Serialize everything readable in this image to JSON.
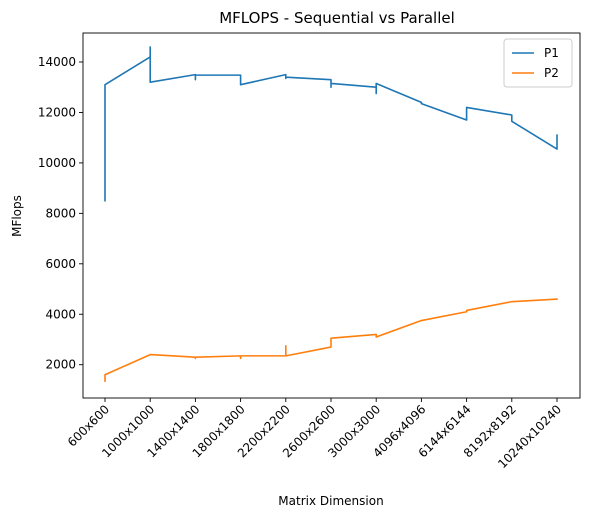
{
  "chart_data": {
    "type": "line",
    "title": "MFLOPS - Sequential vs Parallel",
    "xlabel": "Matrix Dimension",
    "ylabel": "MFlops",
    "categories": [
      "600x600",
      "1000x1000",
      "1400x1400",
      "1800x1800",
      "2200x2200",
      "2600x2600",
      "3000x3000",
      "4096x4096",
      "6144x6144",
      "8192x8192",
      "10240x10240"
    ],
    "ylim": [
      680,
      15150
    ],
    "yticks": [
      2000,
      4000,
      6000,
      8000,
      10000,
      12000,
      14000
    ],
    "grid": false,
    "legend_position": "top-right",
    "series": [
      {
        "name": "P1",
        "color": "#1f77b4",
        "points": [
          [
            0,
            8500
          ],
          [
            0,
            13100
          ],
          [
            1,
            14200
          ],
          [
            1,
            14600
          ],
          [
            1,
            13200
          ],
          [
            2,
            13500
          ],
          [
            2,
            13300
          ],
          [
            2,
            13480
          ],
          [
            3,
            13480
          ],
          [
            3,
            13100
          ],
          [
            4,
            13500
          ],
          [
            4,
            13350
          ],
          [
            4,
            13400
          ],
          [
            5,
            13300
          ],
          [
            5,
            13000
          ],
          [
            5,
            13150
          ],
          [
            6,
            13000
          ],
          [
            6,
            12750
          ],
          [
            6,
            13150
          ],
          [
            7,
            12400
          ],
          [
            7,
            12350
          ],
          [
            8,
            11700
          ],
          [
            8,
            12200
          ],
          [
            9,
            11900
          ],
          [
            9,
            11650
          ],
          [
            10,
            10550
          ],
          [
            10,
            11100
          ]
        ]
      },
      {
        "name": "P2",
        "color": "#ff7f0e",
        "points": [
          [
            0,
            1350
          ],
          [
            0,
            1600
          ],
          [
            1,
            2400
          ],
          [
            2,
            2300
          ],
          [
            2,
            2250
          ],
          [
            2,
            2300
          ],
          [
            3,
            2350
          ],
          [
            3,
            2250
          ],
          [
            3,
            2350
          ],
          [
            4,
            2350
          ],
          [
            4,
            2750
          ],
          [
            4,
            2350
          ],
          [
            5,
            2700
          ],
          [
            5,
            3050
          ],
          [
            6,
            3200
          ],
          [
            6,
            3100
          ],
          [
            7,
            3750
          ],
          [
            8,
            4100
          ],
          [
            8,
            4150
          ],
          [
            9,
            4500
          ],
          [
            10,
            4600
          ]
        ]
      }
    ]
  }
}
